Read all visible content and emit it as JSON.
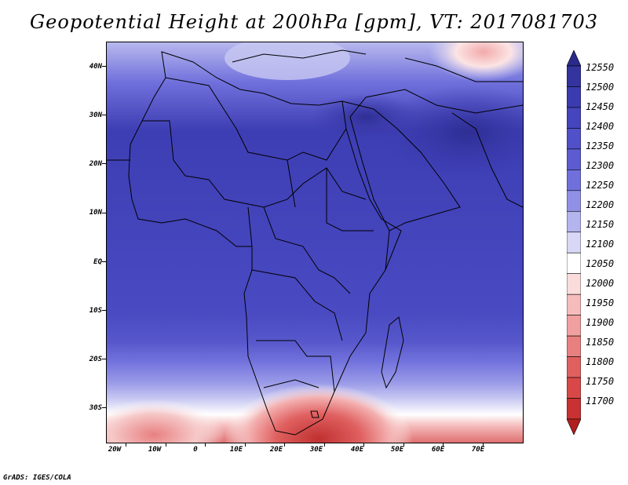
{
  "title": "Geopotential Height at 200hPa [gpm], VT: 2017081703",
  "credit": "GrADS: IGES/COLA",
  "map": {
    "lon_range": [
      -25,
      80
    ],
    "lat_range": [
      -37,
      45
    ],
    "lat_ticks": [
      {
        "value": 40,
        "label": "40N"
      },
      {
        "value": 30,
        "label": "30N"
      },
      {
        "value": 20,
        "label": "20N"
      },
      {
        "value": 10,
        "label": "10N"
      },
      {
        "value": 0,
        "label": "EQ"
      },
      {
        "value": -10,
        "label": "10S"
      },
      {
        "value": -20,
        "label": "20S"
      },
      {
        "value": -30,
        "label": "30S"
      }
    ],
    "lon_ticks": [
      {
        "value": -20,
        "label": "20W"
      },
      {
        "value": -10,
        "label": "10W"
      },
      {
        "value": 0,
        "label": "0"
      },
      {
        "value": 10,
        "label": "10E"
      },
      {
        "value": 20,
        "label": "20E"
      },
      {
        "value": 30,
        "label": "30E"
      },
      {
        "value": 40,
        "label": "40E"
      },
      {
        "value": 50,
        "label": "50E"
      },
      {
        "value": 60,
        "label": "60E"
      },
      {
        "value": 70,
        "label": "70E"
      }
    ]
  },
  "colorbar": {
    "levels": [
      "12550",
      "12500",
      "12450",
      "12400",
      "12350",
      "12300",
      "12250",
      "12200",
      "12150",
      "12100",
      "12050",
      "12000",
      "11950",
      "11900",
      "11850",
      "11800",
      "11750",
      "11700"
    ],
    "colors": [
      "#2a2a8c",
      "#34349e",
      "#3b3bb0",
      "#4545bd",
      "#5050c8",
      "#5c5cd0",
      "#7070dc",
      "#9090e6",
      "#b4b4ee",
      "#d8d8f6",
      "#ffffff",
      "#fbdcdc",
      "#f6bcbc",
      "#f0a0a0",
      "#e88080",
      "#e06060",
      "#d84848",
      "#c83232",
      "#b01e1e"
    ]
  }
}
